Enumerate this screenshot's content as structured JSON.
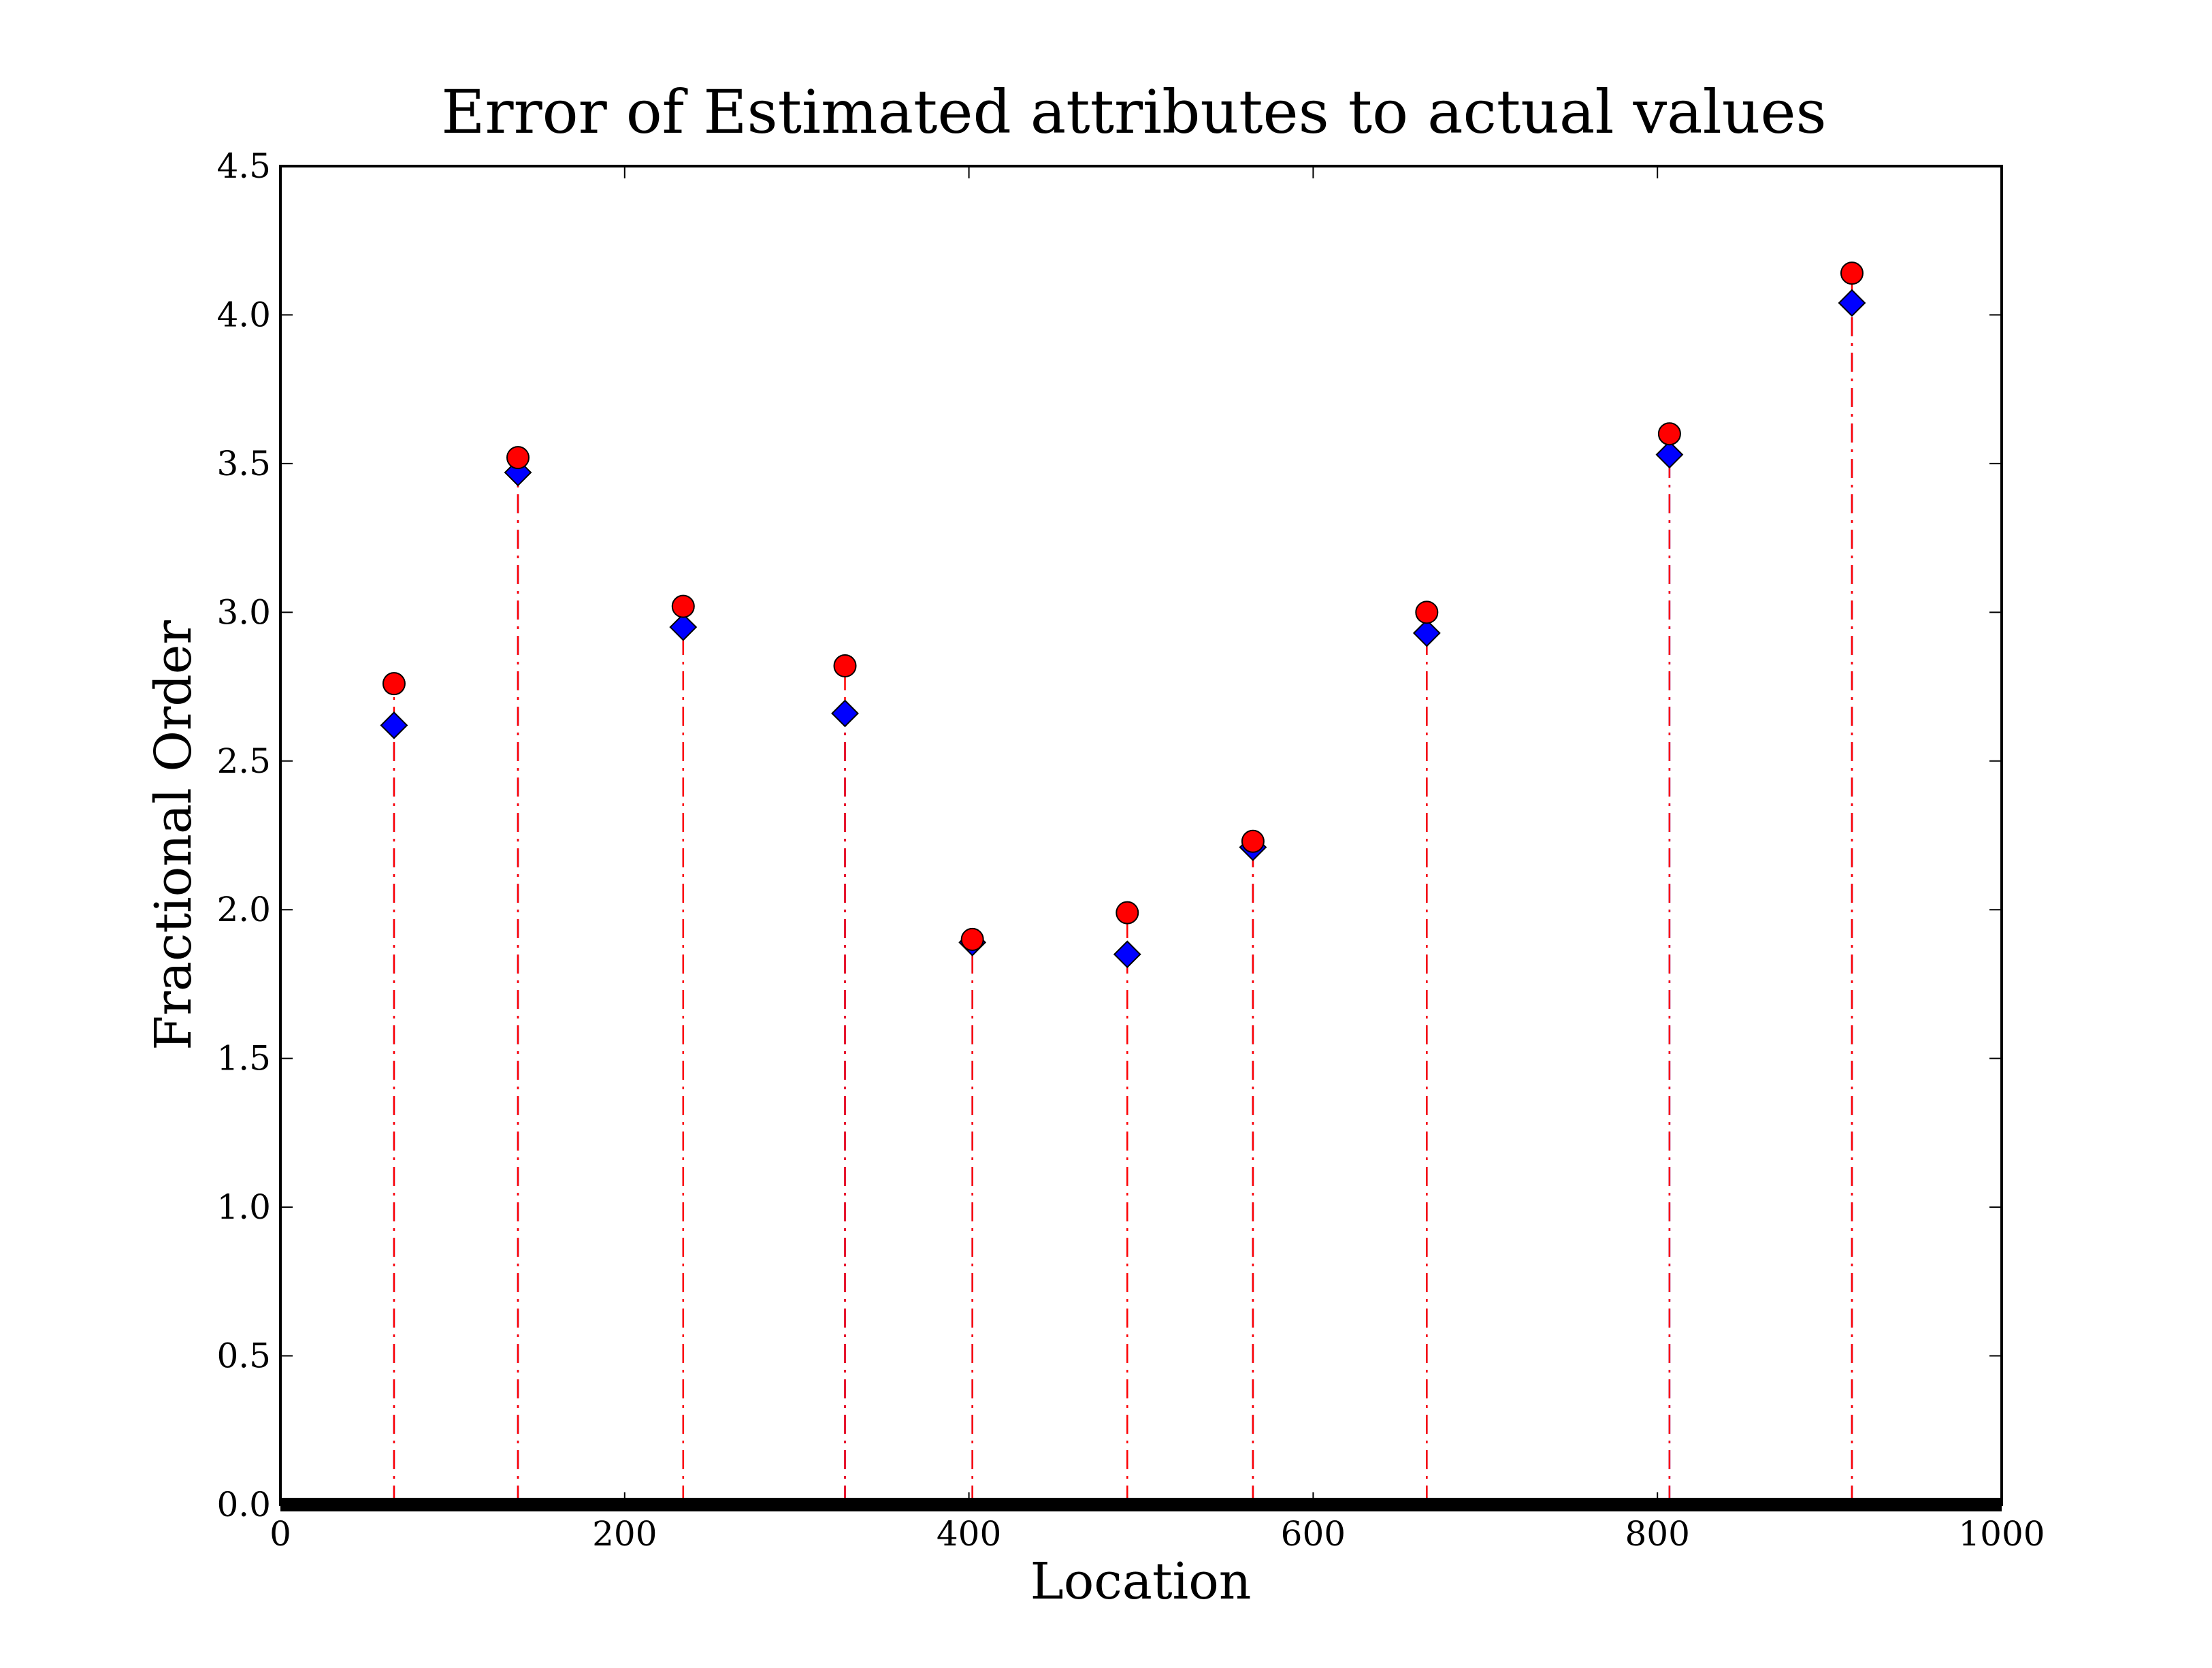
{
  "chart_data": {
    "type": "stem",
    "title": "Error of Estimated attributes to actual values",
    "x_label": "Location",
    "y_label": "Fractional Order",
    "x": [
      66,
      138,
      234,
      328,
      402,
      492,
      565,
      666,
      807,
      913
    ],
    "series": [
      {
        "color": "#0000ff",
        "marker": "diamond",
        "values": [
          2.62,
          3.47,
          2.95,
          2.66,
          1.89,
          1.85,
          2.21,
          2.93,
          3.53,
          4.04
        ]
      },
      {
        "color": "#ff0000",
        "marker": "circle",
        "values": [
          2.76,
          3.52,
          3.02,
          2.82,
          1.9,
          1.99,
          2.23,
          3.0,
          3.6,
          4.14
        ]
      }
    ],
    "xlim": [
      0,
      1000
    ],
    "xticks": [
      0,
      200,
      400,
      600,
      800,
      1000
    ],
    "ylim": [
      0,
      4.5
    ],
    "yticks": [
      {
        "value": 0,
        "label": "0.0"
      },
      0.5,
      {
        "value": 1,
        "label": "1.0"
      },
      1.5,
      {
        "value": 2,
        "label": "2.0"
      },
      2.5,
      {
        "value": 3,
        "label": "3.0"
      },
      3.5,
      {
        "value": 4,
        "label": "4.0"
      },
      4.5
    ]
  }
}
